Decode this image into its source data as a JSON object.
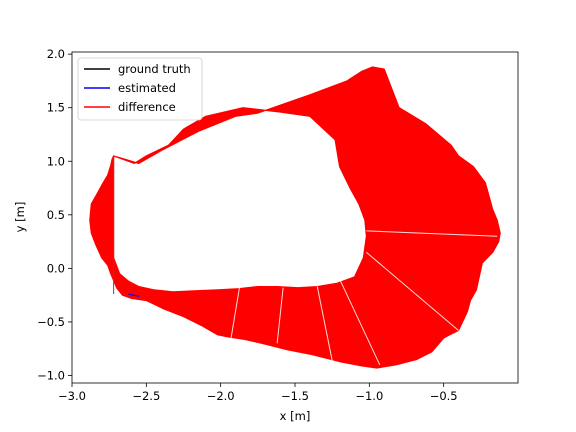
{
  "chart_data": {
    "type": "line",
    "title": "",
    "xlabel": "x [m]",
    "ylabel": "y [m]",
    "xlim": [
      -3.0,
      -0.0
    ],
    "ylim": [
      -1.07,
      2.02
    ],
    "x_ticks": [
      -3.0,
      -2.5,
      -2.0,
      -1.5,
      -1.0,
      -0.5
    ],
    "x_tick_labels": [
      "−3.0",
      "−2.5",
      "−2.0",
      "−1.5",
      "−1.0",
      "−0.5"
    ],
    "y_ticks": [
      -1.0,
      -0.5,
      0.0,
      0.5,
      1.0,
      1.5,
      2.0
    ],
    "y_tick_labels": [
      "−1.0",
      "−0.5",
      "0.0",
      "0.5",
      "1.0",
      "1.5",
      "2.0"
    ],
    "grid": false,
    "legend_position": "top-left",
    "series": [
      {
        "name": "ground truth",
        "color": "#000000",
        "x": [
          -2.72,
          -2.72,
          -2.68,
          -2.62,
          -2.55,
          -2.45,
          -2.32,
          -2.18,
          -2.02,
          -1.88,
          -1.75,
          -1.62,
          -1.48,
          -1.35,
          -1.22,
          -1.1,
          -1.04,
          -1.02,
          -1.03,
          -1.07,
          -1.13,
          -1.2,
          -1.23,
          -1.4,
          -1.6,
          -1.85,
          -2.1,
          -2.25,
          -2.35,
          -2.5,
          -2.58,
          -2.62,
          -2.65,
          -2.68,
          -2.71,
          -2.72
        ],
        "y": [
          1.05,
          0.1,
          -0.05,
          -0.12,
          -0.17,
          -0.2,
          -0.22,
          -0.21,
          -0.2,
          -0.19,
          -0.17,
          -0.17,
          -0.18,
          -0.17,
          -0.14,
          -0.08,
          0.1,
          0.3,
          0.45,
          0.6,
          0.75,
          0.95,
          1.2,
          1.42,
          1.46,
          1.5,
          1.42,
          1.3,
          1.15,
          1.05,
          0.98,
          0.7,
          0.4,
          0.2,
          0.05,
          1.05
        ]
      },
      {
        "name": "estimated",
        "color": "#0000ff",
        "x": [
          -2.72,
          -2.6,
          -2.4,
          -2.1,
          -1.8,
          -1.5,
          -1.2,
          -0.9,
          -0.6,
          -0.4,
          -0.28,
          -0.22,
          -0.18,
          -0.13,
          -0.2,
          -0.3,
          -0.42,
          -0.55,
          -0.65,
          -0.75,
          -0.9,
          -1.0,
          -1.1,
          -1.6,
          -1.85,
          -2.0,
          -2.3,
          -2.5,
          -2.58
        ],
        "y": [
          -0.24,
          -0.25,
          -0.45,
          -0.6,
          -0.7,
          -0.8,
          -0.88,
          -0.93,
          -0.8,
          -0.6,
          -0.4,
          -0.1,
          0.15,
          0.3,
          0.6,
          0.8,
          1.0,
          1.15,
          1.3,
          1.45,
          1.6,
          1.7,
          1.87,
          1.75,
          1.48,
          1.44,
          1.33,
          1.15,
          0.98
        ]
      },
      {
        "name": "difference",
        "color": "#ff0000"
      }
    ],
    "difference_region": {
      "outer": {
        "x": [
          -2.55,
          -2.4,
          -2.15,
          -1.9,
          -1.75,
          -1.4,
          -1.15,
          -1.05,
          -0.98,
          -0.9,
          -0.8,
          -0.62,
          -0.45,
          -0.4,
          -0.3,
          -0.22,
          -0.19,
          -0.17,
          -0.14,
          -0.12,
          -0.13,
          -0.17,
          -0.24,
          -0.28,
          -0.32,
          -0.34,
          -0.4,
          -0.46,
          -0.5,
          -0.58,
          -0.68,
          -0.82,
          -0.95,
          -1.05,
          -1.2,
          -1.4,
          -1.55,
          -1.72,
          -1.85,
          -1.95,
          -2.02,
          -2.12,
          -2.25,
          -2.38,
          -2.5,
          -2.6,
          -2.66,
          -2.7,
          -2.74,
          -2.76,
          -2.8,
          -2.84,
          -2.87,
          -2.88,
          -2.87,
          -2.83,
          -2.79,
          -2.76,
          -2.74,
          -2.73,
          -2.72
        ],
        "y": [
          0.98,
          1.1,
          1.28,
          1.42,
          1.45,
          1.62,
          1.75,
          1.84,
          1.88,
          1.86,
          1.5,
          1.35,
          1.15,
          1.05,
          0.95,
          0.8,
          0.65,
          0.55,
          0.45,
          0.33,
          0.25,
          0.15,
          0.05,
          -0.2,
          -0.3,
          -0.4,
          -0.58,
          -0.62,
          -0.65,
          -0.78,
          -0.85,
          -0.9,
          -0.93,
          -0.91,
          -0.87,
          -0.8,
          -0.76,
          -0.7,
          -0.66,
          -0.64,
          -0.62,
          -0.54,
          -0.45,
          -0.38,
          -0.3,
          -0.28,
          -0.25,
          -0.18,
          -0.05,
          0.03,
          0.1,
          0.22,
          0.33,
          0.45,
          0.6,
          0.7,
          0.8,
          0.87,
          0.96,
          1.02,
          1.05
        ]
      },
      "inner": {
        "x": [
          -2.72,
          -2.72,
          -2.68,
          -2.62,
          -2.55,
          -2.45,
          -2.32,
          -2.18,
          -2.02,
          -1.88,
          -1.75,
          -1.62,
          -1.48,
          -1.35,
          -1.22,
          -1.1,
          -1.04,
          -1.02,
          -1.03,
          -1.07,
          -1.13,
          -1.2,
          -1.23,
          -1.4,
          -1.6,
          -1.85,
          -2.1,
          -2.25,
          -2.35,
          -2.5,
          -2.58
        ],
        "y": [
          1.05,
          0.1,
          -0.05,
          -0.12,
          -0.17,
          -0.2,
          -0.22,
          -0.21,
          -0.2,
          -0.19,
          -0.17,
          -0.17,
          -0.18,
          -0.17,
          -0.14,
          -0.08,
          0.1,
          0.3,
          0.45,
          0.6,
          0.75,
          0.95,
          1.2,
          1.42,
          1.46,
          1.5,
          1.42,
          1.3,
          1.15,
          1.05,
          0.98
        ]
      }
    },
    "highlight_lines": [
      {
        "from": [
          -1.93,
          -0.65
        ],
        "to": [
          -1.87,
          -0.15
        ]
      },
      {
        "from": [
          -1.62,
          -0.7
        ],
        "to": [
          -1.58,
          -0.18
        ]
      },
      {
        "from": [
          -1.25,
          -0.86
        ],
        "to": [
          -1.35,
          -0.17
        ]
      },
      {
        "from": [
          -0.93,
          -0.9
        ],
        "to": [
          -1.2,
          -0.1
        ]
      },
      {
        "from": [
          -0.4,
          -0.58
        ],
        "to": [
          -1.02,
          0.15
        ]
      },
      {
        "from": [
          -0.14,
          0.3
        ],
        "to": [
          -1.02,
          0.35
        ]
      }
    ]
  }
}
